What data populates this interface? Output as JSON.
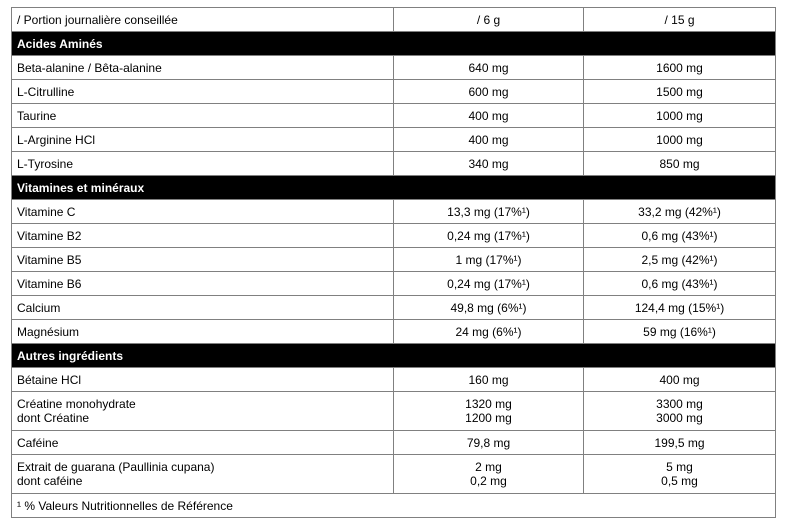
{
  "header": {
    "label": "/ Portion journalière conseillée",
    "col1": "/ 6 g",
    "col2": "/ 15 g"
  },
  "sections": [
    {
      "title": "Acides Aminés",
      "rows": [
        {
          "name": [
            "Beta-alanine / Bêta-alanine"
          ],
          "v1": [
            "640 mg"
          ],
          "v2": [
            "1600 mg"
          ]
        },
        {
          "name": [
            "L-Citrulline"
          ],
          "v1": [
            "600 mg"
          ],
          "v2": [
            "1500 mg"
          ]
        },
        {
          "name": [
            "Taurine"
          ],
          "v1": [
            "400 mg"
          ],
          "v2": [
            "1000 mg"
          ]
        },
        {
          "name": [
            "L-Arginine HCl"
          ],
          "v1": [
            "400 mg"
          ],
          "v2": [
            "1000 mg"
          ]
        },
        {
          "name": [
            "L-Tyrosine"
          ],
          "v1": [
            "340 mg"
          ],
          "v2": [
            "850 mg"
          ]
        }
      ]
    },
    {
      "title": "Vitamines et minéraux",
      "rows": [
        {
          "name": [
            "Vitamine C"
          ],
          "v1": [
            "13,3 mg (17%¹)"
          ],
          "v2": [
            "33,2 mg (42%¹)"
          ]
        },
        {
          "name": [
            "Vitamine B2"
          ],
          "v1": [
            "0,24 mg (17%¹)"
          ],
          "v2": [
            "0,6 mg (43%¹)"
          ]
        },
        {
          "name": [
            "Vitamine B5"
          ],
          "v1": [
            "1 mg (17%¹)"
          ],
          "v2": [
            "2,5 mg (42%¹)"
          ]
        },
        {
          "name": [
            "Vitamine B6"
          ],
          "v1": [
            "0,24 mg (17%¹)"
          ],
          "v2": [
            "0,6 mg (43%¹)"
          ]
        },
        {
          "name": [
            "Calcium"
          ],
          "v1": [
            "49,8 mg (6%¹)"
          ],
          "v2": [
            "124,4 mg (15%¹)"
          ]
        },
        {
          "name": [
            "Magnésium"
          ],
          "v1": [
            "24 mg (6%¹)"
          ],
          "v2": [
            "59 mg (16%¹)"
          ]
        }
      ]
    },
    {
      "title": "Autres ingrédients",
      "rows": [
        {
          "name": [
            "Bétaine HCl"
          ],
          "v1": [
            "160 mg"
          ],
          "v2": [
            "400 mg"
          ]
        },
        {
          "name": [
            "Créatine monohydrate",
            "dont Créatine"
          ],
          "v1": [
            "1320 mg",
            "1200 mg"
          ],
          "v2": [
            "3300 mg",
            "3000 mg"
          ]
        },
        {
          "name": [
            "Caféine"
          ],
          "v1": [
            "79,8 mg"
          ],
          "v2": [
            "199,5 mg"
          ]
        },
        {
          "name": [
            "Extrait de guarana (Paullinia cupana)",
            "dont caféine"
          ],
          "v1": [
            "2 mg",
            "0,2 mg"
          ],
          "v2": [
            "5 mg",
            "0,5 mg"
          ]
        }
      ]
    }
  ],
  "footnote": "¹ % Valeurs Nutritionnelles de Référence"
}
